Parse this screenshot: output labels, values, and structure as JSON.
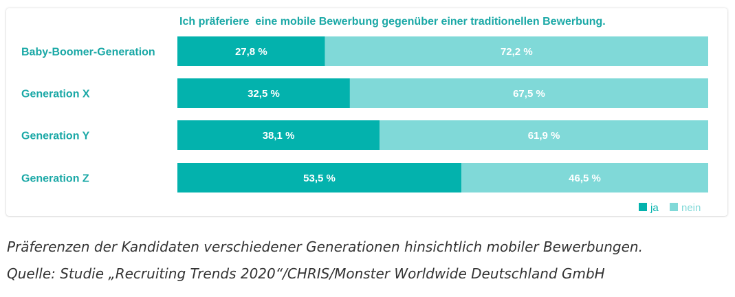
{
  "colors": {
    "ja": "#03b2ad",
    "nein": "#80d9d8",
    "text_teal": "#1aa8a6",
    "caption": "#333333"
  },
  "chart_data": {
    "type": "bar",
    "orientation": "horizontal",
    "stacked": true,
    "title": "Ich präferiere  eine mobile Bewerbung gegenüber einer traditionellen Bewerbung.",
    "categories": [
      "Baby-Boomer-Generation",
      "Generation X",
      "Generation Y",
      "Generation Z"
    ],
    "series": [
      {
        "name": "ja",
        "values": [
          27.8,
          32.5,
          38.1,
          53.5
        ],
        "labels": [
          "27,8 %",
          "32,5 %",
          "38,1 %",
          "53,5 %"
        ]
      },
      {
        "name": "nein",
        "values": [
          72.2,
          67.5,
          61.9,
          46.5
        ],
        "labels": [
          "72,2 %",
          "67,5 %",
          "61,9 %",
          "46,5 %"
        ]
      }
    ],
    "xlim": [
      0,
      100
    ],
    "grid": false,
    "legend_position": "bottom-right"
  },
  "caption": {
    "line1": "Präferenzen der Kandidaten verschiedener Generationen hinsichtlich mobiler Bewerbungen.",
    "line2": "Quelle: Studie „Recruiting Trends 2020“/CHRIS/Monster Worldwide Deutschland GmbH"
  }
}
